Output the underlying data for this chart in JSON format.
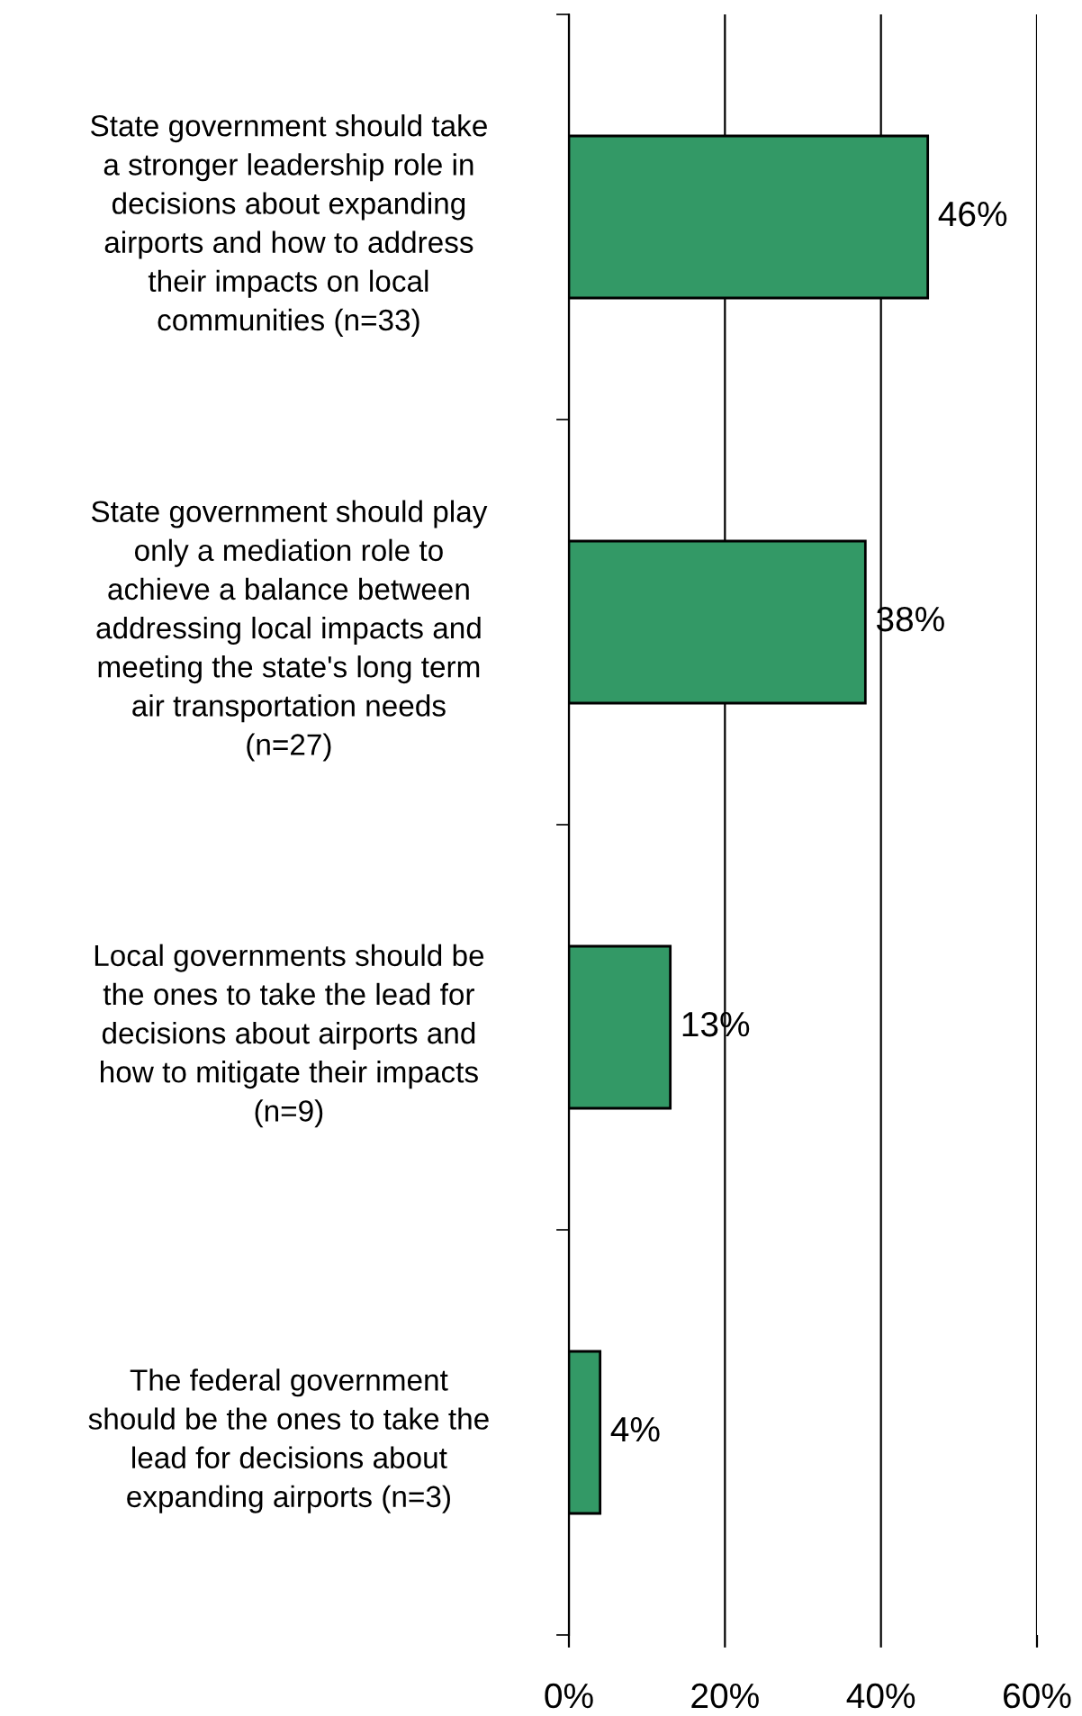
{
  "chart_data": {
    "type": "bar",
    "orientation": "horizontal",
    "categories": [
      "State government should take\na stronger leadership role in\ndecisions about expanding\nairports and how to address\ntheir impacts on local\ncommunities (n=33)",
      "State government should play\nonly a mediation role to\nachieve a balance between\naddressing local impacts and\nmeeting the state's long term\nair transportation needs\n(n=27)",
      "Local governments should be\nthe ones to take the lead for\ndecisions about airports and\nhow to mitigate their impacts\n(n=9)",
      "The federal government\nshould be the ones to take the\nlead for decisions about\nexpanding airports (n=3)"
    ],
    "values": [
      46,
      38,
      13,
      4
    ],
    "value_labels": [
      "46%",
      "38%",
      "13%",
      "4%"
    ],
    "color": "#339966",
    "xlim": [
      0,
      60
    ],
    "xticks": [
      {
        "value": 0,
        "label": "0%"
      },
      {
        "value": 20,
        "label": "20%"
      },
      {
        "value": 40,
        "label": "40%"
      },
      {
        "value": 60,
        "label": "60%"
      }
    ],
    "grid": "x"
  }
}
